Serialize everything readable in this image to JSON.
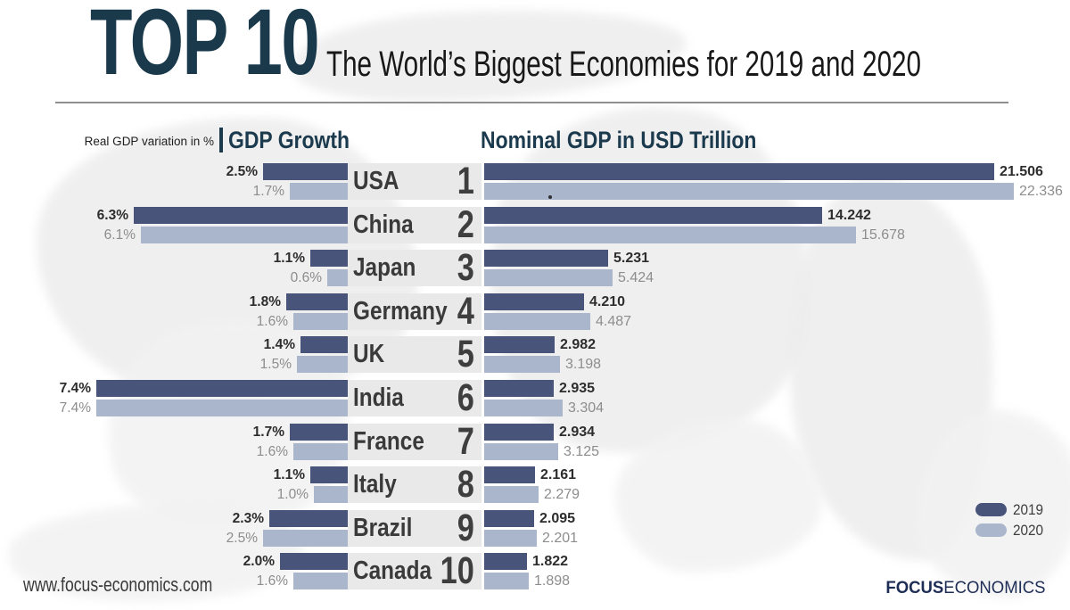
{
  "header": {
    "title": "TOP 10",
    "subtitle": "The World’s Biggest Economies for 2019 and 2020"
  },
  "sections": {
    "growth_note": "Real GDP variation in %",
    "growth_title": "GDP Growth",
    "gdp_title": "Nominal GDP in USD Trillion"
  },
  "colors": {
    "bar_2019": "#49547a",
    "bar_2020": "#a9b6cb",
    "accent": "#1c3a4e",
    "band": "#e9e9e9"
  },
  "legend": [
    {
      "label": "2019",
      "color": "#49547a"
    },
    {
      "label": "2020",
      "color": "#a9b6cb"
    }
  ],
  "rows": [
    {
      "rank": "1",
      "country": "USA",
      "growth_2019": "2.5%",
      "growth_2020": "1.7%",
      "gdp_2019": "21.506",
      "gdp_2020": "22.336"
    },
    {
      "rank": "2",
      "country": "China",
      "growth_2019": "6.3%",
      "growth_2020": "6.1%",
      "gdp_2019": "14.242",
      "gdp_2020": "15.678"
    },
    {
      "rank": "3",
      "country": "Japan",
      "growth_2019": "1.1%",
      "growth_2020": "0.6%",
      "gdp_2019": "5.231",
      "gdp_2020": "5.424"
    },
    {
      "rank": "4",
      "country": "Germany",
      "growth_2019": "1.8%",
      "growth_2020": "1.6%",
      "gdp_2019": "4.210",
      "gdp_2020": "4.487"
    },
    {
      "rank": "5",
      "country": "UK",
      "growth_2019": "1.4%",
      "growth_2020": "1.5%",
      "gdp_2019": "2.982",
      "gdp_2020": "3.198"
    },
    {
      "rank": "6",
      "country": "India",
      "growth_2019": "7.4%",
      "growth_2020": "7.4%",
      "gdp_2019": "2.935",
      "gdp_2020": "3.304"
    },
    {
      "rank": "7",
      "country": "France",
      "growth_2019": "1.7%",
      "growth_2020": "1.6%",
      "gdp_2019": "2.934",
      "gdp_2020": "3.125"
    },
    {
      "rank": "8",
      "country": "Italy",
      "growth_2019": "1.1%",
      "growth_2020": "1.0%",
      "gdp_2019": "2.161",
      "gdp_2020": "2.279"
    },
    {
      "rank": "9",
      "country": "Brazil",
      "growth_2019": "2.3%",
      "growth_2020": "2.5%",
      "gdp_2019": "2.095",
      "gdp_2020": "2.201"
    },
    {
      "rank": "10",
      "country": "Canada",
      "growth_2019": "2.0%",
      "growth_2020": "1.6%",
      "gdp_2019": "1.822",
      "gdp_2020": "1.898"
    }
  ],
  "chart_data": {
    "type": "bar",
    "orientation": "horizontal",
    "title": "TOP 10 — The World’s Biggest Economies for 2019 and 2020",
    "categories": [
      "USA",
      "China",
      "Japan",
      "Germany",
      "UK",
      "India",
      "France",
      "Italy",
      "Brazil",
      "Canada"
    ],
    "ranks": [
      1,
      2,
      3,
      4,
      5,
      6,
      7,
      8,
      9,
      10
    ],
    "series": [
      {
        "name": "Real GDP growth 2019 (%)",
        "values": [
          2.5,
          6.3,
          1.1,
          1.8,
          1.4,
          7.4,
          1.7,
          1.1,
          2.3,
          2.0
        ]
      },
      {
        "name": "Real GDP growth 2020 (%)",
        "values": [
          1.7,
          6.1,
          0.6,
          1.6,
          1.5,
          7.4,
          1.6,
          1.0,
          2.5,
          1.6
        ]
      },
      {
        "name": "Nominal GDP 2019 (USD trillion)",
        "values": [
          21.506,
          14.242,
          5.231,
          4.21,
          2.982,
          2.935,
          2.934,
          2.161,
          2.095,
          1.822
        ]
      },
      {
        "name": "Nominal GDP 2020 (USD trillion)",
        "values": [
          22.336,
          15.678,
          5.424,
          4.487,
          3.198,
          3.304,
          3.125,
          2.279,
          2.201,
          1.898
        ]
      }
    ],
    "legend_entries": [
      "2019",
      "2020"
    ],
    "legend_position": "bottom-right",
    "grid": false,
    "left_axis_note": "Real GDP variation in %",
    "left_section_label": "GDP Growth",
    "right_section_label": "Nominal GDP in USD Trillion"
  },
  "footer": {
    "website": "www.focus-economics.com",
    "brand_bold": "FOCUS",
    "brand_regular": "ECONOMICS"
  },
  "artifact": {
    "dot": "."
  }
}
